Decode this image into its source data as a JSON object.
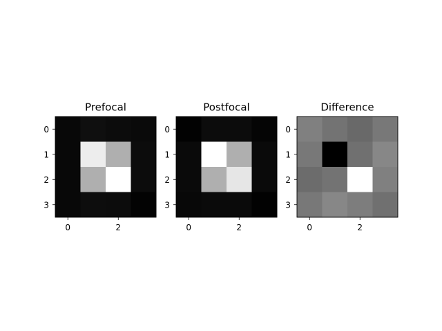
{
  "chart_data": [
    {
      "type": "heatmap",
      "title": "Prefocal",
      "colormap": "gray",
      "x_ticks": [
        "0",
        "2"
      ],
      "y_ticks": [
        "0",
        "1",
        "2",
        "3"
      ],
      "values": [
        [
          8,
          15,
          12,
          10
        ],
        [
          8,
          237,
          175,
          12
        ],
        [
          8,
          175,
          255,
          12
        ],
        [
          8,
          13,
          12,
          3
        ]
      ]
    },
    {
      "type": "heatmap",
      "title": "Postfocal",
      "colormap": "gray",
      "x_ticks": [
        "0",
        "2"
      ],
      "y_ticks": [
        "0",
        "1",
        "2",
        "3"
      ],
      "values": [
        [
          2,
          12,
          12,
          5
        ],
        [
          10,
          255,
          175,
          10
        ],
        [
          10,
          175,
          230,
          10
        ],
        [
          8,
          10,
          10,
          2
        ]
      ]
    },
    {
      "type": "heatmap",
      "title": "Difference",
      "colormap": "gray",
      "x_ticks": [
        "0",
        "2"
      ],
      "y_ticks": [
        "0",
        "1",
        "2",
        "3"
      ],
      "values": [
        [
          128,
          115,
          105,
          120
        ],
        [
          120,
          0,
          112,
          135
        ],
        [
          108,
          115,
          255,
          128
        ],
        [
          120,
          135,
          125,
          112
        ]
      ]
    }
  ]
}
